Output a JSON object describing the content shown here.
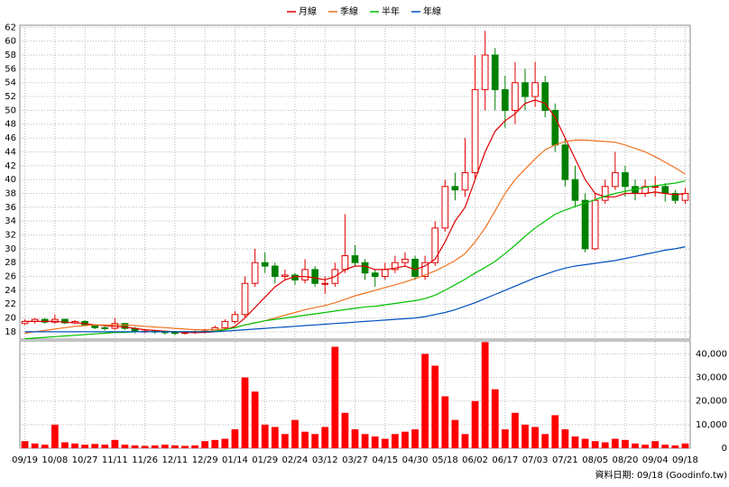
{
  "chart_data": {
    "type": "candlestick",
    "categories": [
      "09/19",
      null,
      null,
      "10/08",
      null,
      null,
      "10/27",
      null,
      null,
      "11/11",
      null,
      null,
      "11/26",
      null,
      null,
      "12/11",
      null,
      null,
      "12/29",
      null,
      null,
      "01/14",
      null,
      null,
      "01/29",
      null,
      null,
      "02/24",
      null,
      null,
      "03/12",
      null,
      null,
      "03/27",
      null,
      null,
      "04/15",
      null,
      null,
      "04/30",
      null,
      null,
      "05/18",
      null,
      null,
      "06/02",
      null,
      null,
      "06/17",
      null,
      null,
      "07/03",
      null,
      null,
      "07/21",
      null,
      null,
      "08/05",
      null,
      null,
      "08/20",
      null,
      null,
      "09/04",
      null,
      null,
      "09/18"
    ],
    "open": [
      19.2,
      19.5,
      19.8,
      19.4,
      19.8,
      19.3,
      19.5,
      19,
      18.6,
      18.5,
      19.2,
      18.5,
      18,
      18.1,
      18,
      17.9,
      17.8,
      17.9,
      18,
      18.1,
      18.6,
      19.5,
      20.5,
      25,
      28,
      27.5,
      26,
      26.2,
      25.5,
      27,
      25,
      25,
      27,
      29,
      28,
      26.5,
      26,
      27,
      28,
      28.5,
      26,
      28,
      33,
      39,
      38.5,
      41,
      53,
      58,
      53,
      50,
      54,
      52,
      54,
      50,
      45,
      40,
      37,
      30,
      37,
      39,
      41,
      39,
      38,
      39,
      39,
      38,
      37
    ],
    "high": [
      19.8,
      20,
      20,
      20.5,
      19.9,
      19.7,
      19.7,
      19.1,
      18.8,
      20,
      19.3,
      18.7,
      18.3,
      18.3,
      18.2,
      18.1,
      18.1,
      18.2,
      18.4,
      18.9,
      19.8,
      21,
      26,
      30,
      29.5,
      28,
      27,
      26.5,
      28.5,
      27.5,
      26,
      28,
      35,
      30.5,
      28.5,
      27,
      28,
      29,
      29.5,
      29,
      29,
      34,
      40,
      41,
      46,
      58,
      61.5,
      59,
      55,
      57,
      56,
      57,
      55,
      51,
      46,
      42,
      38,
      38,
      40,
      44,
      42,
      40,
      40,
      40.5,
      39.5,
      38.5,
      38.8
    ],
    "low": [
      19,
      19.2,
      19.2,
      19.2,
      19.1,
      19.1,
      18.8,
      18.4,
      18.2,
      18.3,
      18.3,
      17.8,
      17.8,
      17.7,
      17.6,
      17.5,
      17.6,
      17.7,
      17.8,
      18,
      18.4,
      19.2,
      20,
      24.5,
      26.5,
      25,
      25.5,
      24.8,
      25,
      24.5,
      23.5,
      24.5,
      26.5,
      27.5,
      25.5,
      24.5,
      25.5,
      26.5,
      27.5,
      25.5,
      25.5,
      27.5,
      32.5,
      37,
      37.5,
      40,
      50,
      50,
      47.5,
      48,
      50,
      50.5,
      49,
      44,
      39,
      36,
      29.5,
      29.8,
      36.5,
      38.5,
      37.5,
      37,
      37.5,
      37.5,
      36.8,
      36.5,
      36.5
    ],
    "close": [
      19.5,
      19.8,
      19.4,
      19.8,
      19.3,
      19.5,
      19,
      18.6,
      18.5,
      19.2,
      18.5,
      18,
      18.1,
      18,
      17.9,
      17.8,
      17.9,
      18,
      18.1,
      18.6,
      19.5,
      20.5,
      25,
      28,
      27.5,
      26,
      26.2,
      25.5,
      27,
      25,
      25,
      27,
      29,
      28,
      26.5,
      26,
      27,
      28,
      28.5,
      26,
      28,
      33,
      39,
      38.5,
      41,
      53,
      58,
      53,
      50,
      54,
      52,
      54,
      50,
      45,
      40,
      37,
      30,
      37,
      39,
      41,
      39,
      38,
      39,
      39,
      38,
      37,
      38
    ],
    "up_color": "#e00000",
    "down_color": "#008000",
    "series": [
      {
        "name": "月線",
        "color": "#e00000",
        "values": [
          19.5,
          19.5,
          19.5,
          19.5,
          19.4,
          19.3,
          19.2,
          19,
          18.9,
          18.8,
          18.7,
          18.5,
          18.3,
          18.2,
          18.1,
          18,
          17.9,
          17.9,
          17.9,
          18,
          18.3,
          18.8,
          20,
          21.5,
          23,
          24.5,
          25.5,
          26,
          26,
          25.8,
          25.5,
          26,
          27,
          27.5,
          27.5,
          27,
          27,
          27.2,
          27.5,
          27,
          27.5,
          28.5,
          31,
          34,
          36,
          40,
          44,
          47,
          48.5,
          49.5,
          51,
          51.5,
          51,
          49,
          46,
          43,
          40,
          38,
          37.5,
          37.5,
          38,
          38,
          38,
          38.2,
          38,
          37.8,
          38
        ]
      },
      {
        "name": "季線",
        "color": "#f07020",
        "values": [
          17.8,
          18,
          18.2,
          18.4,
          18.6,
          18.8,
          18.9,
          19,
          19,
          19,
          19,
          18.9,
          18.8,
          18.7,
          18.6,
          18.5,
          18.4,
          18.3,
          18.3,
          18.3,
          18.4,
          18.6,
          19,
          19.3,
          19.6,
          20,
          20.4,
          20.8,
          21.2,
          21.5,
          21.8,
          22.2,
          22.7,
          23.2,
          23.6,
          24,
          24.4,
          24.8,
          25.2,
          25.7,
          26.2,
          26.8,
          27.5,
          28.3,
          29.3,
          31,
          33,
          35.5,
          38,
          40,
          41.5,
          43,
          44.3,
          45,
          45.5,
          45.7,
          45.7,
          45.6,
          45.5,
          45.4,
          45,
          44.5,
          44,
          43.3,
          42.5,
          41.7,
          40.8
        ]
      },
      {
        "name": "半年",
        "color": "#00c000",
        "values": [
          17,
          17.1,
          17.2,
          17.3,
          17.4,
          17.5,
          17.6,
          17.7,
          17.8,
          17.9,
          17.9,
          18,
          18,
          18,
          18,
          18,
          18,
          18,
          18,
          18.1,
          18.3,
          18.6,
          19,
          19.3,
          19.6,
          19.8,
          20,
          20.2,
          20.4,
          20.6,
          20.8,
          21,
          21.2,
          21.4,
          21.6,
          21.7,
          21.9,
          22.1,
          22.3,
          22.5,
          22.8,
          23.3,
          24,
          24.8,
          25.6,
          26.5,
          27.3,
          28.2,
          29.3,
          30.5,
          31.8,
          33,
          34,
          35,
          35.6,
          36.1,
          36.6,
          37.1,
          37.6,
          38,
          38.3,
          38.6,
          38.9,
          39.1,
          39.3,
          39.5,
          39.8
        ]
      },
      {
        "name": "年線",
        "color": "#0050c0",
        "values": [
          18,
          18,
          18,
          18,
          18,
          18,
          18,
          18,
          18,
          18,
          18,
          18,
          18,
          18,
          18,
          18,
          18,
          18,
          18,
          18,
          18.1,
          18.2,
          18.3,
          18.4,
          18.5,
          18.6,
          18.7,
          18.8,
          18.9,
          19,
          19.1,
          19.2,
          19.3,
          19.4,
          19.5,
          19.6,
          19.7,
          19.8,
          19.9,
          20,
          20.2,
          20.5,
          20.8,
          21.2,
          21.7,
          22.2,
          22.8,
          23.4,
          24,
          24.6,
          25.2,
          25.8,
          26.3,
          26.8,
          27.2,
          27.5,
          27.7,
          27.9,
          28.1,
          28.3,
          28.6,
          28.9,
          29.2,
          29.5,
          29.8,
          30,
          30.3
        ]
      }
    ],
    "ylim": [
      16.95,
      62.3
    ],
    "yticks": [
      18,
      20,
      22,
      24,
      26,
      28,
      30,
      32,
      34,
      36,
      38,
      40,
      42,
      44,
      46,
      48,
      50,
      52,
      54,
      56,
      58,
      60,
      62
    ],
    "grid": true,
    "volume": {
      "color": "#ff0000",
      "values": [
        3000,
        2000,
        1500,
        10000,
        2500,
        2000,
        1500,
        1800,
        1500,
        3500,
        1500,
        1200,
        1000,
        1200,
        1500,
        1200,
        1000,
        1200,
        3000,
        3500,
        4000,
        8000,
        30000,
        24000,
        10000,
        9000,
        6000,
        12000,
        7000,
        6000,
        9000,
        43000,
        15000,
        8000,
        6000,
        5000,
        4000,
        6000,
        7000,
        8000,
        40000,
        35000,
        22000,
        12000,
        6000,
        20000,
        45000,
        25000,
        8000,
        15000,
        10000,
        9000,
        6000,
        14000,
        8000,
        5000,
        4000,
        3000,
        2500,
        4000,
        3500,
        2000,
        1500,
        3000,
        1500,
        1200,
        2000
      ],
      "ylim": [
        0,
        45500
      ],
      "yticks": [
        0,
        {
          "value": 10000,
          "label": "10,000"
        },
        {
          "value": 20000,
          "label": "20,000"
        },
        {
          "value": 30000,
          "label": "30,000"
        },
        {
          "value": 40000,
          "label": "40,000"
        }
      ]
    },
    "source": "資料日期: 09/18 (Goodinfo.tw)"
  }
}
